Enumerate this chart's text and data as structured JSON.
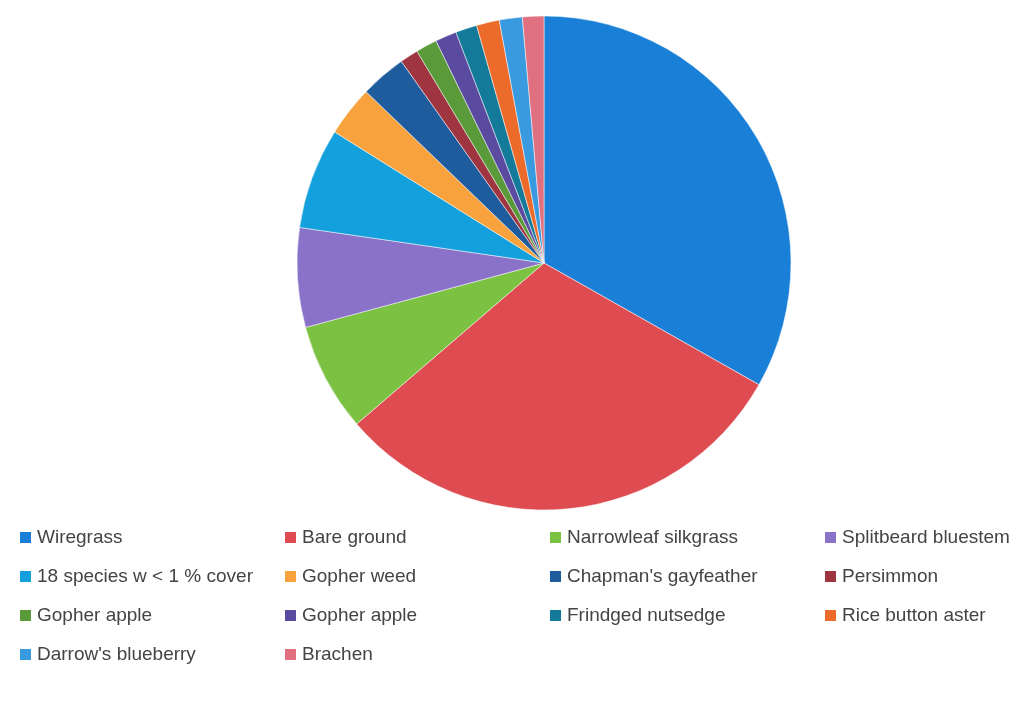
{
  "chart_data": {
    "type": "pie",
    "categories": [
      "Wiregrass",
      "Bare ground",
      "Narrowleaf silkgrass",
      "Splitbeard bluestem",
      "18 species w < 1 % cover",
      "Gopher weed",
      "Chapman's gayfeather",
      "Persimmon",
      "Gopher apple",
      "Gopher apple",
      "Frindged nutsedge",
      "Rice button aster",
      "Darrow's blueberry",
      "Brachen"
    ],
    "values": [
      33.2,
      30.5,
      7.1,
      6.5,
      6.6,
      3.3,
      3.0,
      1.2,
      1.4,
      1.4,
      1.4,
      1.5,
      1.5,
      1.4
    ],
    "colors": [
      "#1a7fd6",
      "#de4c52",
      "#7cc242",
      "#8a72c9",
      "#14a0dc",
      "#f7a23c",
      "#1e5c9e",
      "#9e3540",
      "#5a9a3a",
      "#5a4aa0",
      "#147a9a",
      "#ec6a2a",
      "#3a9ae0",
      "#e07080"
    ],
    "legend": "bottom"
  }
}
